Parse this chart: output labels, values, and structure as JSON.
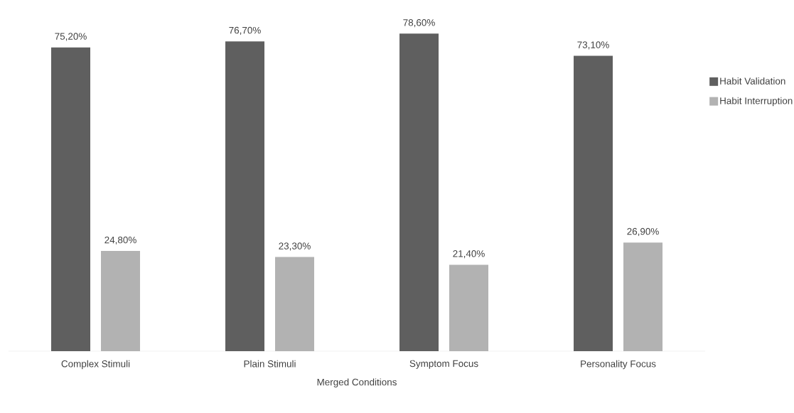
{
  "chart_data": {
    "type": "bar",
    "xlabel": "Merged Conditions",
    "categories": [
      "Complex Stimuli",
      "Plain Stimuli",
      "Symptom Focus",
      "Personality Focus"
    ],
    "legend": "right",
    "series": [
      {
        "name": "Habit Validation",
        "color": "#5f5f5f",
        "values": [
          75.2,
          76.7,
          78.6,
          73.1
        ],
        "value_labels": [
          "75,20%",
          "76,70%",
          "78,60%",
          "73,10%"
        ]
      },
      {
        "name": "Habit Interruption",
        "color": "#b2b2b2",
        "values": [
          24.8,
          23.3,
          21.4,
          26.9
        ],
        "value_labels": [
          "24,80%",
          "23,30%",
          "21,40%",
          "26,90%"
        ]
      }
    ]
  }
}
